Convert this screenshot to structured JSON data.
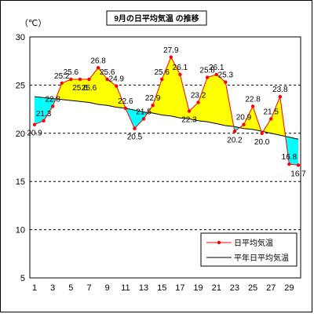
{
  "chart_data": {
    "type": "line",
    "title": "9月の日平均気温 の推移",
    "ylabel": "（℃）",
    "xlabel": "",
    "ylim": [
      5,
      30
    ],
    "xlim": [
      1,
      30
    ],
    "yticks": [
      5,
      10,
      15,
      20,
      25,
      30
    ],
    "xticks": [
      1,
      3,
      5,
      7,
      9,
      11,
      13,
      15,
      17,
      19,
      21,
      23,
      25,
      27,
      29
    ],
    "grid": "horizontal dashed",
    "legend_position": "bottom-right",
    "x": [
      1,
      2,
      3,
      4,
      5,
      6,
      7,
      8,
      9,
      10,
      11,
      12,
      13,
      14,
      15,
      16,
      17,
      18,
      19,
      20,
      21,
      22,
      23,
      24,
      25,
      26,
      27,
      28,
      29,
      30
    ],
    "series": [
      {
        "name": "日平均気温",
        "color": "#ff0000",
        "marker": "circle",
        "values": [
          20.9,
          21.3,
          22.8,
          25.2,
          25.6,
          25.6,
          25.6,
          26.8,
          25.6,
          24.9,
          22.6,
          20.5,
          21.5,
          22.9,
          25.6,
          27.9,
          26.1,
          22.3,
          23.2,
          25.8,
          26.1,
          25.3,
          20.2,
          20.9,
          22.8,
          20.0,
          21.5,
          23.8,
          16.8,
          16.7
        ],
        "labels": [
          "20.9",
          "21.3",
          "22.8",
          "25.2",
          "25.6",
          "25.6",
          "25.6",
          "26.8",
          "25.6",
          "24.9",
          "22.6",
          "20.5",
          "21.5",
          "22.9",
          "25.6",
          "27.9",
          "26.1",
          "22.3",
          "23.2",
          "25.8",
          "26.1",
          "25.3",
          "20.2",
          "20.9",
          "22.8",
          "20.0",
          "21.5",
          "23.8",
          "16.8",
          "16.7"
        ]
      },
      {
        "name": "平年日平均気温",
        "color": "#000000",
        "marker": "none",
        "values": [
          23.8,
          23.7,
          23.6,
          23.5,
          23.4,
          23.3,
          23.2,
          23.0,
          22.9,
          22.7,
          22.6,
          22.4,
          22.2,
          22.1,
          21.9,
          21.8,
          21.6,
          21.5,
          21.3,
          21.2,
          21.0,
          20.8,
          20.7,
          20.5,
          20.4,
          20.2,
          20.0,
          19.8,
          19.6,
          19.4
        ]
      }
    ],
    "fill_above_color": "#ffff00",
    "fill_below_color": "#00ffff"
  }
}
